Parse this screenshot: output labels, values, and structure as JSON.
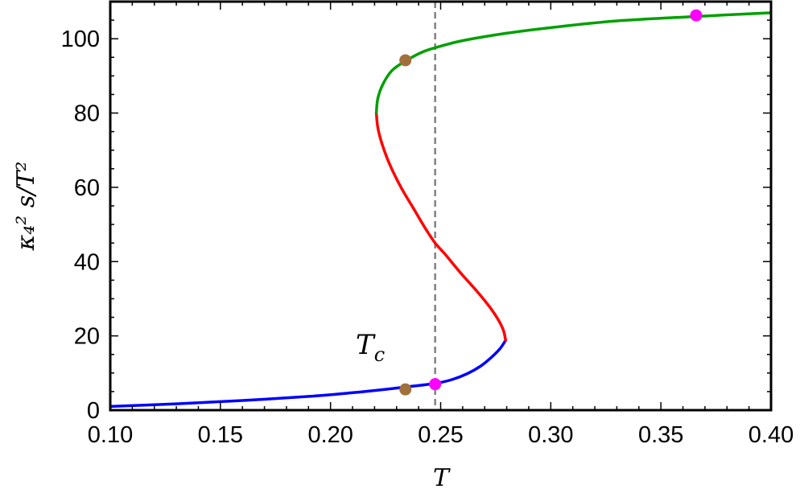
{
  "chart_data": {
    "type": "line",
    "xlabel": "T",
    "ylabel": "κ₄² s/T²",
    "xlim": [
      0.1,
      0.4
    ],
    "ylim": [
      0,
      110
    ],
    "xticks": [
      "0.10",
      "0.15",
      "0.20",
      "0.25",
      "0.30",
      "0.35",
      "0.40"
    ],
    "yticks": [
      "0",
      "20",
      "40",
      "60",
      "80",
      "100"
    ],
    "xtick_values": [
      0.1,
      0.15,
      0.2,
      0.25,
      0.3,
      0.35,
      0.4
    ],
    "ytick_values": [
      0,
      20,
      40,
      60,
      80,
      100
    ],
    "grid": false,
    "frame": true,
    "series": [
      {
        "color": "#0000ff",
        "points": [
          [
            0.1,
            1.0
          ],
          [
            0.13,
            1.7
          ],
          [
            0.16,
            2.6
          ],
          [
            0.19,
            3.7
          ],
          [
            0.21,
            4.7
          ],
          [
            0.225,
            5.6
          ],
          [
            0.235,
            6.3
          ],
          [
            0.2475,
            7.2
          ],
          [
            0.255,
            8.2
          ],
          [
            0.262,
            9.8
          ],
          [
            0.268,
            11.8
          ],
          [
            0.273,
            14.2
          ],
          [
            0.277,
            16.6
          ],
          [
            0.2795,
            18.8
          ]
        ]
      },
      {
        "color": "#ff0000",
        "points": [
          [
            0.2795,
            18.8
          ],
          [
            0.2785,
            21.5
          ],
          [
            0.276,
            24.5
          ],
          [
            0.272,
            28.0
          ],
          [
            0.2665,
            32.0
          ],
          [
            0.259,
            37.0
          ],
          [
            0.252,
            42.0
          ],
          [
            0.2475,
            45.0
          ],
          [
            0.243,
            49.0
          ],
          [
            0.238,
            54.0
          ],
          [
            0.232,
            60.0
          ],
          [
            0.227,
            66.0
          ],
          [
            0.2235,
            71.5
          ],
          [
            0.2215,
            76.0
          ],
          [
            0.2208,
            80.0
          ]
        ]
      },
      {
        "color": "#00a000",
        "points": [
          [
            0.2208,
            80.0
          ],
          [
            0.2215,
            84.0
          ],
          [
            0.224,
            88.0
          ],
          [
            0.228,
            91.5
          ],
          [
            0.234,
            94.0
          ],
          [
            0.242,
            96.5
          ],
          [
            0.25,
            98.0
          ],
          [
            0.26,
            99.5
          ],
          [
            0.28,
            101.5
          ],
          [
            0.3,
            103.0
          ],
          [
            0.33,
            104.8
          ],
          [
            0.366,
            106.0
          ],
          [
            0.4,
            107.0
          ]
        ]
      }
    ],
    "points": [
      {
        "x": 0.234,
        "y": 94.2,
        "color": "#a0703c"
      },
      {
        "x": 0.234,
        "y": 5.6,
        "color": "#a0703c"
      },
      {
        "x": 0.2475,
        "y": 7.0,
        "color": "#ff00ff"
      },
      {
        "x": 0.366,
        "y": 106.3,
        "color": "#ff00ff"
      }
    ],
    "vline": {
      "x": 0.2475,
      "color": "#808080"
    },
    "annotations": [
      {
        "text": "T",
        "subscript": "c",
        "x": 0.2245,
        "y": 19.0
      }
    ]
  }
}
